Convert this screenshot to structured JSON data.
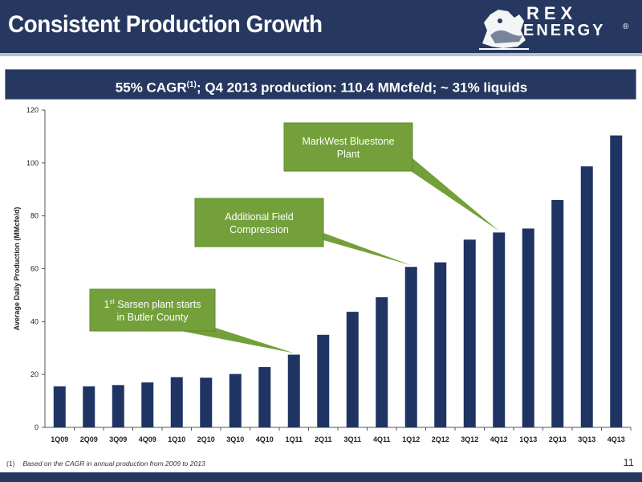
{
  "header": {
    "title": "Consistent Production Growth",
    "logo_line1": "REX",
    "logo_line2": "ENERGY",
    "logo_mark": "®"
  },
  "subtitle": {
    "main": "55% CAGR",
    "sup": "(1)",
    "rest": "; Q4 2013 production: 110.4 MMcfe/d; ~ 31% liquids"
  },
  "chart_data": {
    "type": "bar",
    "categories": [
      "1Q09",
      "2Q09",
      "3Q09",
      "4Q09",
      "1Q10",
      "2Q10",
      "3Q10",
      "4Q10",
      "1Q11",
      "2Q11",
      "3Q11",
      "4Q11",
      "1Q12",
      "2Q12",
      "3Q12",
      "4Q12",
      "1Q13",
      "2Q13",
      "3Q13",
      "4Q13"
    ],
    "values": [
      15.5,
      15.5,
      16,
      17,
      19,
      18.8,
      20.2,
      22.8,
      27.5,
      35,
      43.7,
      49.2,
      60.7,
      62.4,
      71,
      73.7,
      75.2,
      86,
      98.7,
      110.4
    ],
    "ylabel": "Average Daily Production (MMcfe/d)",
    "ylim": [
      0,
      120
    ],
    "yticks": [
      0,
      20,
      40,
      60,
      80,
      100,
      120
    ],
    "bar_color": "#1f3462",
    "grid": false,
    "annotations": [
      {
        "text_pre": "1",
        "text_sup": "st",
        "text_post": " Sarsen plant starts",
        "line2": "in Butler County",
        "target": "1Q11"
      },
      {
        "text_pre": "Additional Field",
        "text_sup": "",
        "text_post": "",
        "line2": "Compression",
        "target": "1Q12"
      },
      {
        "text_pre": "MarkWest Bluestone",
        "text_sup": "",
        "text_post": "",
        "line2": "Plant",
        "target": "4Q12"
      }
    ],
    "annotation_color": "#73a03a"
  },
  "footnote": {
    "num": "(1)",
    "text": "Based on the CAGR in annual production from 2009 to 2013"
  },
  "page_number": "11"
}
